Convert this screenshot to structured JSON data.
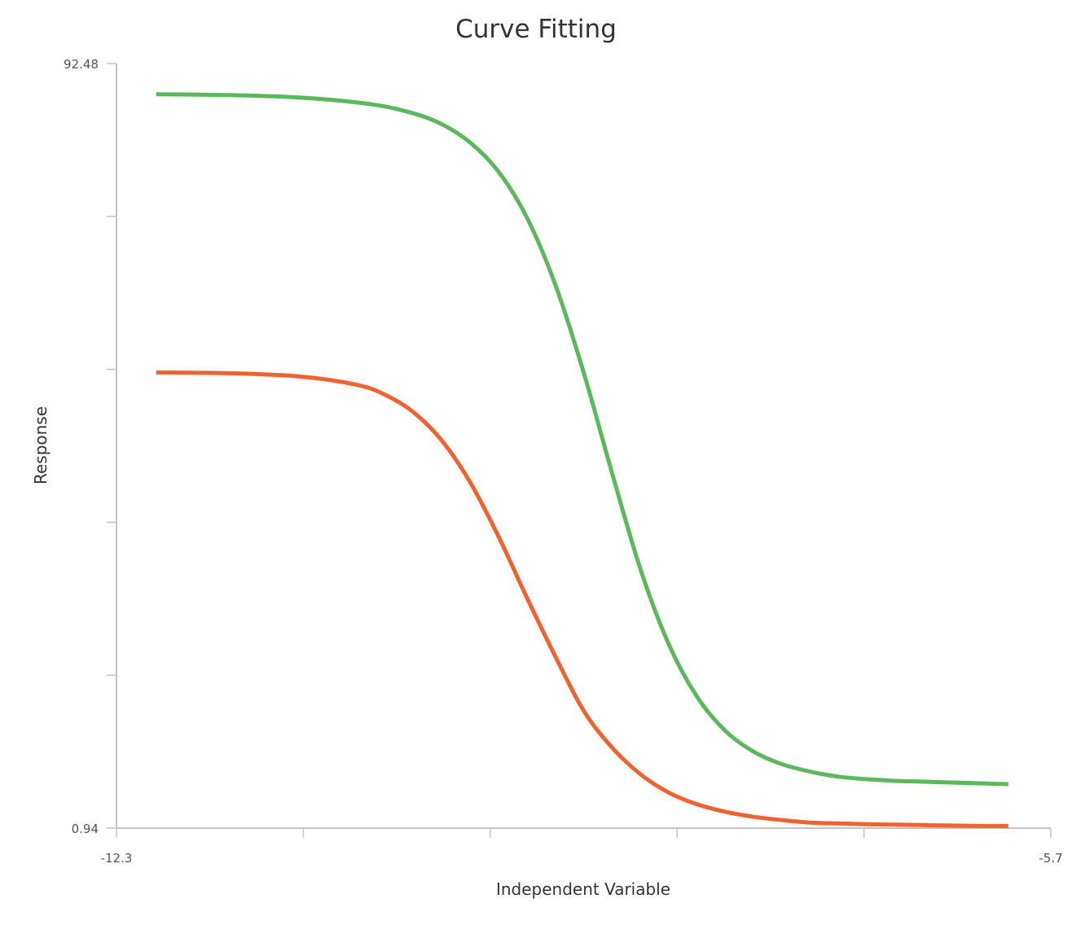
{
  "chart_data": {
    "type": "line",
    "title": "Curve Fitting",
    "xlabel": "Independent Variable",
    "ylabel": "Response",
    "xlim": [
      -12.3,
      -5.7
    ],
    "ylim": [
      0.94,
      92.48
    ],
    "x_tick_labels": [
      "-12.3",
      "-5.7"
    ],
    "y_tick_labels": [
      "0.94",
      "92.48"
    ],
    "x_ticks": [
      -12.3,
      -10.98,
      -9.66,
      -8.34,
      -7.02,
      -5.7
    ],
    "y_ticks": [
      0.94,
      19.248,
      37.556,
      55.864,
      74.172,
      92.48
    ],
    "grid": false,
    "legend": "none",
    "series": [
      {
        "color": "#5cb85c",
        "x": [
          -12.02,
          -11.5,
          -11.0,
          -10.5,
          -10.2,
          -10.0,
          -9.8,
          -9.6,
          -9.4,
          -9.2,
          -9.0,
          -8.8,
          -8.6,
          -8.4,
          -8.2,
          -8.0,
          -7.8,
          -7.6,
          -7.4,
          -7.2,
          -7.0,
          -6.8,
          -6.6,
          -6.4,
          -6.2,
          -6.0
        ],
        "y": [
          88.8,
          88.7,
          88.4,
          87.6,
          86.5,
          85.2,
          83.0,
          79.5,
          74.0,
          66.0,
          55.5,
          43.5,
          32.0,
          23.0,
          16.7,
          12.6,
          10.1,
          8.6,
          7.7,
          7.1,
          6.8,
          6.6,
          6.5,
          6.4,
          6.3,
          6.2
        ]
      },
      {
        "color": "#f0622f",
        "x": [
          -12.02,
          -11.5,
          -11.0,
          -10.6,
          -10.4,
          -10.2,
          -10.0,
          -9.8,
          -9.6,
          -9.4,
          -9.2,
          -9.0,
          -8.8,
          -8.6,
          -8.4,
          -8.2,
          -8.0,
          -7.8,
          -7.6,
          -7.4,
          -7.2,
          -7.0,
          -6.8,
          -6.6,
          -6.4,
          -6.2,
          -6.0
        ],
        "y": [
          55.5,
          55.4,
          55.0,
          54.0,
          52.8,
          50.7,
          47.3,
          42.3,
          35.8,
          28.5,
          21.5,
          15.0,
          10.6,
          7.4,
          5.2,
          3.8,
          2.9,
          2.3,
          1.9,
          1.6,
          1.5,
          1.4,
          1.35,
          1.3,
          1.25,
          1.2,
          1.2
        ]
      }
    ]
  }
}
